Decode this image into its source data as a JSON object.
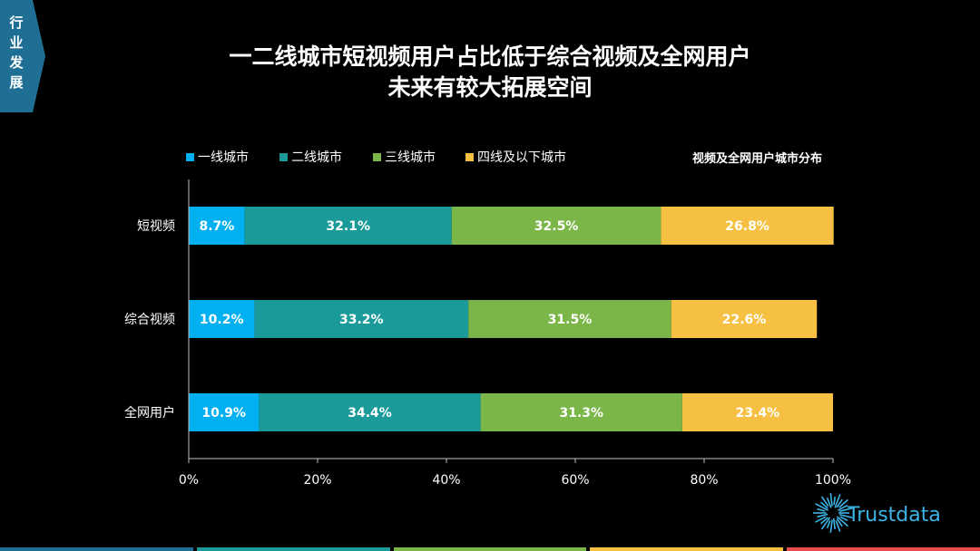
{
  "side_tab": {
    "label": "行业发展"
  },
  "header": {
    "title_line1": "一二线城市短视频用户占比低于综合视频及全网用户",
    "title_line2": "未来有较大拓展空间"
  },
  "colors": {
    "tier1": "#00b0f0",
    "tier2": "#1b9a9a",
    "tier3": "#7ab648",
    "tier4": "#f6c042",
    "side_tab": "#1f6f95",
    "bottom_strip": [
      "#1f6f95",
      "#1b9a9a",
      "#7ab648",
      "#f6c042",
      "#e84c4c"
    ]
  },
  "logo": {
    "text": "Trustdata",
    "icon": "starburst-icon"
  },
  "chart_data": {
    "type": "bar",
    "orientation": "horizontal",
    "stacked": true,
    "subtitle": "视频及全网用户城市分布",
    "categories": [
      "短视频",
      "综合视频",
      "全网用户"
    ],
    "series": [
      {
        "name": "一线城市",
        "values": [
          8.7,
          10.2,
          10.9
        ],
        "labels": [
          "8.7%",
          "10.2%",
          "10.9%"
        ]
      },
      {
        "name": "二线城市",
        "values": [
          32.1,
          33.2,
          34.4
        ],
        "labels": [
          "32.1%",
          "33.2%",
          "34.4%"
        ]
      },
      {
        "name": "三线城市",
        "values": [
          32.5,
          31.5,
          31.3
        ],
        "labels": [
          "32.5%",
          "31.5%",
          "31.3%"
        ]
      },
      {
        "name": "四线及以下城市",
        "values": [
          26.8,
          22.6,
          23.4
        ],
        "labels": [
          "26.8%",
          "22.6%",
          "23.4%"
        ]
      }
    ],
    "xlim": [
      0,
      100
    ],
    "xticks": [
      "0%",
      "20%",
      "40%",
      "60%",
      "80%",
      "100%"
    ],
    "legend_position": "top",
    "grid": false
  }
}
